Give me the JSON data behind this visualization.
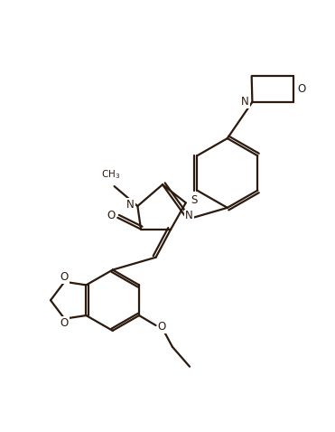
{
  "background_color": "#ffffff",
  "line_color": "#2c1a0e",
  "line_width": 1.6,
  "fig_width": 3.71,
  "fig_height": 4.78,
  "dpi": 100,
  "xlim": [
    0,
    10
  ],
  "ylim": [
    0,
    13
  ]
}
